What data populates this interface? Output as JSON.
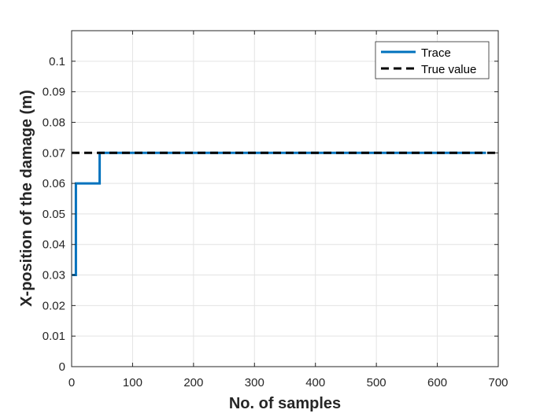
{
  "chart_data": {
    "type": "line",
    "xlabel": "No. of samples",
    "ylabel": "X-position of the damage (m)",
    "xlim": [
      0,
      700
    ],
    "ylim": [
      0,
      0.11
    ],
    "xticks": [
      0,
      100,
      200,
      300,
      400,
      500,
      600,
      700
    ],
    "yticks": [
      0,
      0.01,
      0.02,
      0.03,
      0.04,
      0.05,
      0.06,
      0.07,
      0.08,
      0.09,
      0.1
    ],
    "xtick_labels": [
      "0",
      "100",
      "200",
      "300",
      "400",
      "500",
      "600",
      "700"
    ],
    "ytick_labels": [
      "0",
      "0.01",
      "0.02",
      "0.03",
      "0.04",
      "0.05",
      "0.06",
      "0.07",
      "0.08",
      "0.09",
      "0.1"
    ],
    "grid": true,
    "legend_position": "top-right",
    "series": [
      {
        "name": "Trace",
        "color": "#0072BD",
        "style": "solid",
        "x": [
          1,
          7,
          7,
          46,
          46,
          680
        ],
        "y": [
          0.03,
          0.03,
          0.06,
          0.06,
          0.07,
          0.07
        ]
      },
      {
        "name": "True value",
        "color": "#000000",
        "style": "dashed",
        "x": [
          0,
          700
        ],
        "y": [
          0.07,
          0.07
        ]
      }
    ]
  }
}
